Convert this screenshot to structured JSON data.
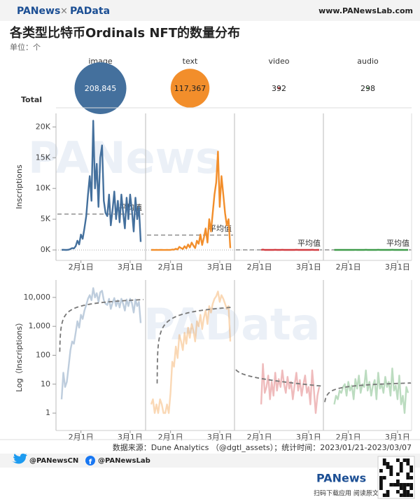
{
  "header": {
    "logo_left": "PANews",
    "logo_sep": "×",
    "logo_right": "PAData",
    "url": "www.PANewsLab.com"
  },
  "title": "各类型比特币Ordinals NFT的数量分布",
  "subtitle": "单位：个",
  "watermarks": [
    "PANews",
    "PAData"
  ],
  "chart_data": [
    {
      "type": "bubble",
      "row_label": "Total",
      "categories": [
        "image",
        "text",
        "video",
        "audio"
      ],
      "values": [
        208845,
        117367,
        392,
        298
      ],
      "value_labels": [
        "208,845",
        "117,367",
        "392",
        "298"
      ],
      "colors": [
        "#44709d",
        "#f28e2b",
        "#d13b40",
        "#3f9b4a"
      ]
    },
    {
      "type": "line",
      "ylabel": "Inscriptions",
      "average_label": "平均值",
      "categories": [
        null,
        null,
        null,
        null,
        null,
        null,
        null,
        null,
        null,
        null,
        null,
        "2月1日",
        null,
        null,
        null,
        null,
        null,
        null,
        null,
        null,
        null,
        null,
        null,
        null,
        null,
        null,
        null,
        null,
        null,
        null,
        null,
        null,
        null,
        null,
        null,
        null,
        null,
        null,
        null,
        "3月1日",
        null,
        null,
        null,
        null,
        null,
        null
      ],
      "ylim": [
        -1700,
        22200
      ],
      "yticks": [
        {
          "value": 0,
          "label": "0K"
        },
        {
          "value": 5000,
          "label": "5K"
        },
        {
          "value": 10000,
          "label": "10K"
        },
        {
          "value": 15000,
          "label": "15K"
        },
        {
          "value": 20000,
          "label": "20K"
        }
      ],
      "series": [
        {
          "name": "image",
          "color": "#44709d",
          "values": [
            3,
            25,
            8,
            12,
            40,
            150,
            300,
            250,
            600,
            1500,
            900,
            2500,
            1800,
            3500,
            5500,
            9000,
            12000,
            8000,
            21000,
            10000,
            14000,
            7000,
            15000,
            17000,
            8000,
            6000,
            5500,
            9000,
            4000,
            6500,
            9500,
            5000,
            8000,
            4500,
            9000,
            6000,
            3500,
            8500,
            5000,
            9000,
            6500,
            3000,
            8500,
            5000,
            7000,
            1300
          ]
        },
        {
          "name": "text",
          "color": "#f28e2b",
          "values": [
            2,
            3,
            1,
            2,
            1,
            3,
            2,
            1,
            1,
            2,
            1,
            5,
            60,
            40,
            200,
            80,
            500,
            300,
            150,
            600,
            250,
            900,
            400,
            1200,
            700,
            300,
            1500,
            1000,
            2500,
            800,
            2000,
            3500,
            1200,
            5000,
            3000,
            6000,
            9000,
            11000,
            16000,
            7000,
            12000,
            9000,
            6000,
            4000,
            5000,
            300
          ]
        },
        {
          "name": "video",
          "color": "#d13b40",
          "values": [
            null,
            null,
            null,
            null,
            null,
            null,
            null,
            null,
            null,
            null,
            null,
            null,
            2,
            50,
            5,
            8,
            20,
            3,
            12,
            4,
            25,
            6,
            15,
            8,
            30,
            10,
            5,
            18,
            7,
            12,
            3,
            9,
            25,
            6,
            14,
            4,
            10,
            20,
            5,
            8,
            2,
            30,
            6,
            1,
            4,
            8
          ]
        },
        {
          "name": "audio",
          "color": "#3f9b4a",
          "values": [
            null,
            null,
            null,
            2,
            4,
            3,
            6,
            5,
            8,
            10,
            4,
            12,
            6,
            9,
            3,
            15,
            7,
            20,
            5,
            10,
            8,
            30,
            6,
            12,
            4,
            9,
            14,
            3,
            25,
            7,
            10,
            5,
            18,
            8,
            12,
            4,
            35,
            6,
            9,
            3,
            20,
            2,
            4,
            1,
            8,
            5
          ]
        }
      ]
    },
    {
      "type": "line",
      "log_scale": true,
      "ylabel": "Log（Inscriptions）",
      "ylim": [
        0.25,
        40000
      ],
      "yticks": [
        1,
        10,
        100,
        {
          "value": 1000,
          "label": "1,000"
        },
        {
          "value": 10000,
          "label": "10,000"
        }
      ]
    }
  ],
  "footer": {
    "source": "数据来源：Dune Analytics （@dgtl_assets）；统计时间：2023/01/21-2023/03/07",
    "twitter": "@PANewsCN",
    "facebook": "@PANewsLab",
    "brand": "PANews",
    "qr_caption": "扫码下载应用 阅读原文"
  }
}
